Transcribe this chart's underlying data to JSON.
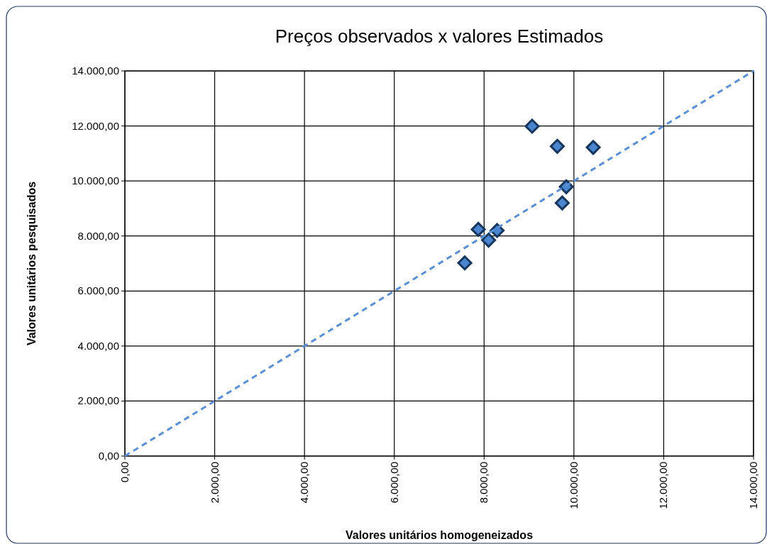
{
  "chart_data": {
    "type": "scatter",
    "title": "Preços observados x valores Estimados",
    "xlabel": "Valores unitários homogeneizados",
    "ylabel": "Valores unitários pesquisados",
    "series": [
      {
        "color": "#4a86d0",
        "marker": "diamond",
        "x": [
          7570,
          7870,
          8100,
          8290,
          9070,
          9630,
          10430,
          9830,
          9740
        ],
        "values": [
          7020,
          8240,
          7850,
          8200,
          11990,
          11260,
          11220,
          9790,
          9200
        ]
      },
      {
        "type": "line",
        "color": "#5b8fd6",
        "line_style": "dashed",
        "x": [
          0,
          14000
        ],
        "values": [
          0,
          14000
        ]
      }
    ],
    "xlim": [
      0,
      14000
    ],
    "ylim": [
      0,
      14000
    ],
    "xticks": [
      {
        "value": 0,
        "label": "0,00"
      },
      {
        "value": 2000,
        "label": "2.000,00"
      },
      {
        "value": 4000,
        "label": "4.000,00"
      },
      {
        "value": 6000,
        "label": "6.000,00"
      },
      {
        "value": 8000,
        "label": "8.000,00"
      },
      {
        "value": 10000,
        "label": "10.000,00"
      },
      {
        "value": 12000,
        "label": "12.000,00"
      },
      {
        "value": 14000,
        "label": "14.000,00"
      }
    ],
    "yticks": [
      {
        "value": 0,
        "label": "0,00"
      },
      {
        "value": 2000,
        "label": "2.000,00"
      },
      {
        "value": 4000,
        "label": "4.000,00"
      },
      {
        "value": 6000,
        "label": "6.000,00"
      },
      {
        "value": 8000,
        "label": "8.000,00"
      },
      {
        "value": 10000,
        "label": "10.000,00"
      },
      {
        "value": 12000,
        "label": "12.000,00"
      },
      {
        "value": 14000,
        "label": "14.000,00"
      }
    ],
    "grid": true
  }
}
